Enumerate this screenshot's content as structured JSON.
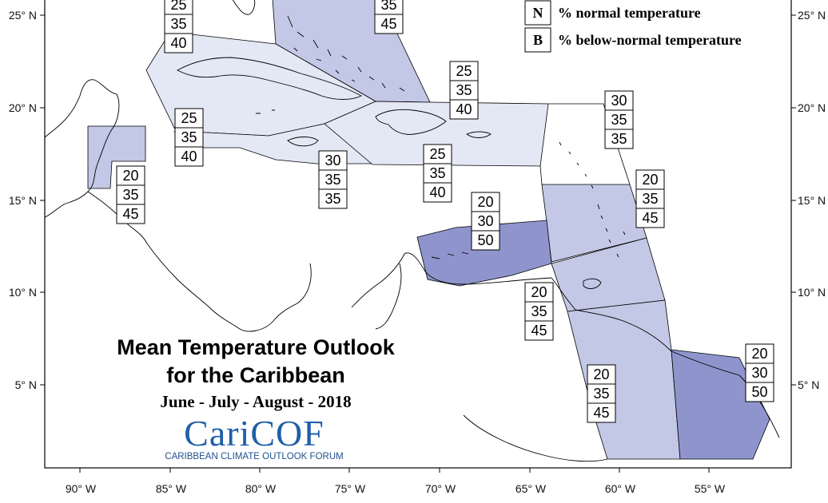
{
  "title_line1": "Mean Temperature Outlook",
  "title_line2": "for the Caribbean",
  "period": "June - July - August - 2018",
  "logo": {
    "name": "CariCOF",
    "subtitle": "CARIBBEAN CLIMATE OUTLOOK FORUM"
  },
  "legend": [
    {
      "letter": "N",
      "text": "% normal temperature"
    },
    {
      "letter": "B",
      "text": "% below-normal temperature"
    }
  ],
  "axes": {
    "x_ticks": [
      "90° W",
      "85° W",
      "80° W",
      "75° W",
      "70° W",
      "65° W",
      "60° W",
      "55° W"
    ],
    "y_ticks_left": [
      "25° N",
      "20° N",
      "15° N",
      "10° N",
      "5° N"
    ],
    "y_ticks_right": [
      "25° N",
      "20° N",
      "15° N",
      "10° N",
      "5° N"
    ]
  },
  "colors": {
    "light": "#e4e8f5",
    "medium": "#c3c8e6",
    "strong": "#8f95cc",
    "outline": "#000000"
  },
  "regions": [
    {
      "name": "bahamas",
      "shade": "medium"
    },
    {
      "name": "cuba",
      "shade": "light"
    },
    {
      "name": "cayman-jamaica-west",
      "shade": "light"
    },
    {
      "name": "hispaniola-puerto-rico",
      "shade": "light"
    },
    {
      "name": "belize",
      "shade": "medium"
    },
    {
      "name": "leeward-islands",
      "shade": "medium"
    },
    {
      "name": "abc-islands",
      "shade": "strong"
    },
    {
      "name": "windward-trinidad",
      "shade": "medium"
    },
    {
      "name": "guyana",
      "shade": "medium"
    },
    {
      "name": "suriname-guiana",
      "shade": "strong"
    }
  ],
  "probability_boxes": [
    {
      "values": [
        "25",
        "35",
        "40"
      ]
    },
    {
      "values": [
        "35",
        "45"
      ]
    },
    {
      "values": [
        "25",
        "35",
        "40"
      ]
    },
    {
      "values": [
        "25",
        "35",
        "40"
      ]
    },
    {
      "values": [
        "30",
        "35",
        "35"
      ]
    },
    {
      "values": [
        "25",
        "35",
        "40"
      ]
    },
    {
      "values": [
        "30",
        "35",
        "35"
      ]
    },
    {
      "values": [
        "20",
        "35",
        "45"
      ]
    },
    {
      "values": [
        "20",
        "35",
        "45"
      ]
    },
    {
      "values": [
        "20",
        "30",
        "50"
      ]
    },
    {
      "values": [
        "20",
        "35",
        "45"
      ]
    },
    {
      "values": [
        "20",
        "35",
        "45"
      ]
    },
    {
      "values": [
        "20",
        "30",
        "50"
      ]
    }
  ]
}
